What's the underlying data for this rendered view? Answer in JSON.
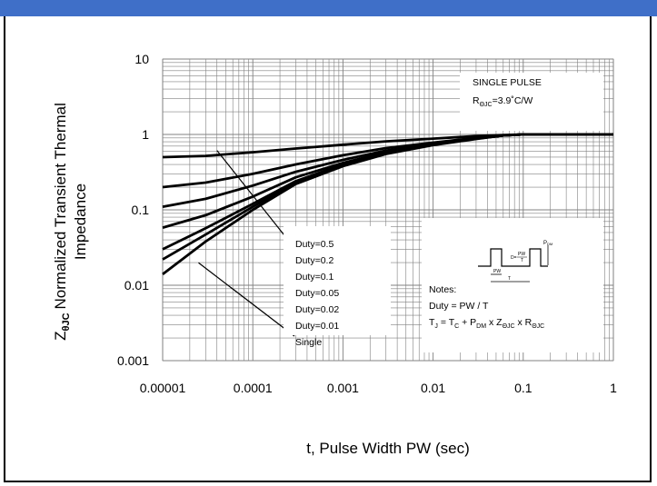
{
  "chart_data": {
    "type": "line",
    "x_scale": "log",
    "y_scale": "log",
    "xlim": [
      1e-05,
      1
    ],
    "ylim": [
      0.001,
      10
    ],
    "x_ticks": [
      "0.00001",
      "0.0001",
      "0.001",
      "0.01",
      "0.1",
      "1"
    ],
    "x_tick_values": [
      1e-05,
      0.0001,
      0.001,
      0.01,
      0.1,
      1
    ],
    "y_ticks": [
      "10",
      "1",
      "0.1",
      "0.01",
      "0.001"
    ],
    "y_tick_values": [
      10,
      1,
      0.1,
      0.01,
      0.001
    ],
    "grid": true,
    "xlabel": "t, Pulse Width PW (sec)",
    "ylabel_sub": "θJC",
    "ylabel_line1": "Normalized Transient Thermal",
    "ylabel_line2": "Impedance",
    "series": [
      {
        "name": "Duty=0.5",
        "x": [
          1e-05,
          3e-05,
          0.0001,
          0.0003,
          0.001,
          0.003,
          0.01,
          0.03,
          0.06,
          0.1,
          0.3,
          1
        ],
        "y": [
          0.5,
          0.52,
          0.58,
          0.65,
          0.73,
          0.81,
          0.88,
          0.95,
          0.98,
          1.0,
          1.0,
          1.0
        ]
      },
      {
        "name": "Duty=0.2",
        "x": [
          1e-05,
          3e-05,
          0.0001,
          0.0003,
          0.001,
          0.003,
          0.01,
          0.03,
          0.06,
          0.1,
          0.3,
          1
        ],
        "y": [
          0.2,
          0.23,
          0.3,
          0.4,
          0.53,
          0.66,
          0.78,
          0.9,
          0.97,
          1.0,
          1.0,
          1.0
        ]
      },
      {
        "name": "Duty=0.1",
        "x": [
          1e-05,
          3e-05,
          0.0001,
          0.0003,
          0.001,
          0.003,
          0.01,
          0.03,
          0.06,
          0.1,
          0.3,
          1
        ],
        "y": [
          0.11,
          0.14,
          0.21,
          0.32,
          0.46,
          0.61,
          0.75,
          0.89,
          0.97,
          1.0,
          1.0,
          1.0
        ]
      },
      {
        "name": "Duty=0.05",
        "x": [
          1e-05,
          3e-05,
          0.0001,
          0.0003,
          0.001,
          0.003,
          0.01,
          0.03,
          0.06,
          0.1,
          0.3,
          1
        ],
        "y": [
          0.058,
          0.085,
          0.15,
          0.27,
          0.42,
          0.58,
          0.74,
          0.88,
          0.97,
          1.0,
          1.0,
          1.0
        ]
      },
      {
        "name": "Duty=0.02",
        "x": [
          1e-05,
          3e-05,
          0.0001,
          0.0003,
          0.001,
          0.003,
          0.01,
          0.03,
          0.06,
          0.1,
          0.3,
          1
        ],
        "y": [
          0.03,
          0.057,
          0.12,
          0.24,
          0.4,
          0.57,
          0.73,
          0.88,
          0.97,
          1.0,
          1.0,
          1.0
        ]
      },
      {
        "name": "Duty=0.01",
        "x": [
          1e-05,
          3e-05,
          0.0001,
          0.0003,
          0.001,
          0.003,
          0.01,
          0.03,
          0.06,
          0.1,
          0.3,
          1
        ],
        "y": [
          0.022,
          0.047,
          0.11,
          0.23,
          0.39,
          0.56,
          0.73,
          0.88,
          0.97,
          1.0,
          1.0,
          1.0
        ]
      },
      {
        "name": "Single",
        "x": [
          1e-05,
          3e-05,
          0.0001,
          0.0003,
          0.001,
          0.003,
          0.01,
          0.03,
          0.06,
          0.1,
          0.3,
          1
        ],
        "y": [
          0.014,
          0.038,
          0.1,
          0.22,
          0.38,
          0.55,
          0.72,
          0.87,
          0.97,
          1.0,
          1.0,
          1.0
        ]
      }
    ],
    "legend_entries": [
      "Duty=0.5",
      "Duty=0.2",
      "Duty=0.1",
      "Duty=0.05",
      "Duty=0.02",
      "Duty=0.01",
      "Single"
    ],
    "legend_placement": "center",
    "annotation_single_pulse": {
      "title": "SINGLE PULSE",
      "r_main": "R",
      "r_sub": "ΘJC",
      "r_value": "=3.9˚C/W"
    },
    "notes": {
      "title": "Notes:",
      "duty_line": "Duty = PW / T",
      "eq_parts": [
        "T",
        "J",
        " = T",
        "C",
        " + P",
        "DM",
        " x Z",
        "ΘJC",
        " x R",
        "ΘJC"
      ],
      "diagram": {
        "p_label": "P",
        "p_sub": "DM",
        "d_label": "D=",
        "frac_num": "PW",
        "frac_den": "T",
        "pw_label": "PW",
        "t_label": "T"
      }
    },
    "colors": {
      "curve": "#000000",
      "grid": "#808080",
      "title_bar": "#3f6fc8"
    }
  }
}
